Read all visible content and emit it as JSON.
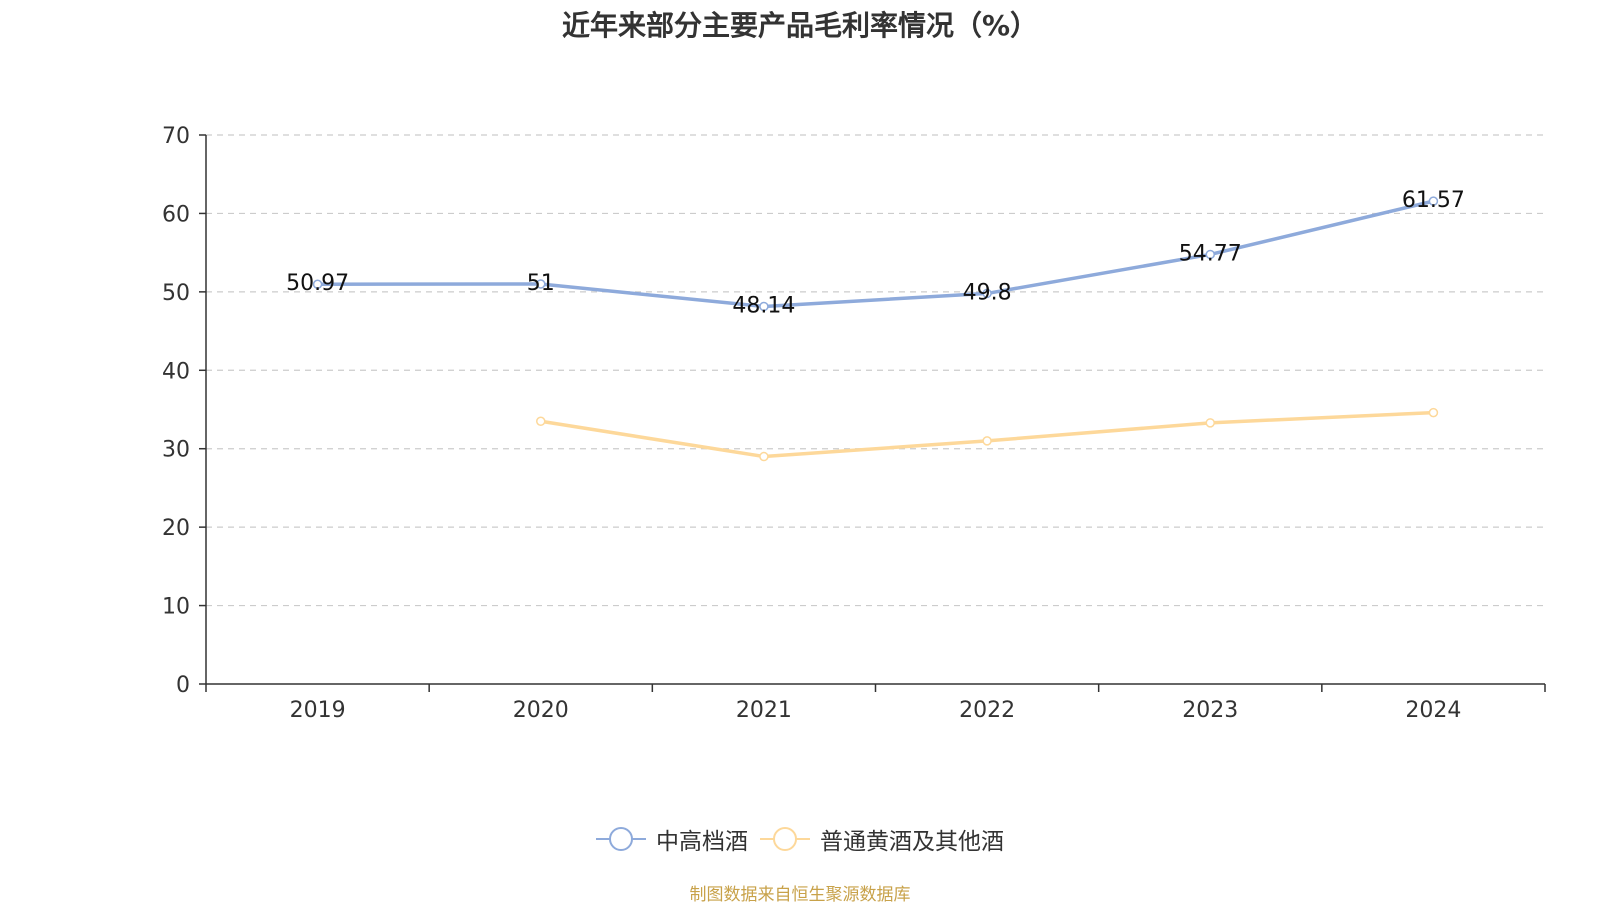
{
  "chart_data": {
    "type": "line",
    "title": "近年来部分主要产品毛利率情况（%）",
    "categories": [
      "2019",
      "2020",
      "2021",
      "2022",
      "2023",
      "2024"
    ],
    "ylim": [
      0,
      70
    ],
    "yticks": [
      "0",
      "10",
      "20",
      "30",
      "40",
      "50",
      "60",
      "70"
    ],
    "grid": true,
    "legend_position": "bottom-center",
    "series": [
      {
        "name": "中高档酒",
        "color": "#8eaadb",
        "values": [
          50.97,
          51,
          48.14,
          49.8,
          54.77,
          61.57
        ],
        "labels": [
          "50.97",
          "51",
          "48.14",
          "49.8",
          "54.77",
          "61.57"
        ]
      },
      {
        "name": "普通黄酒及其他酒",
        "color": "#fdd89a",
        "values": [
          null,
          33.5,
          29,
          31,
          33.3,
          34.6
        ],
        "labels": []
      }
    ]
  },
  "source_note": "制图数据来自恒生聚源数据库"
}
